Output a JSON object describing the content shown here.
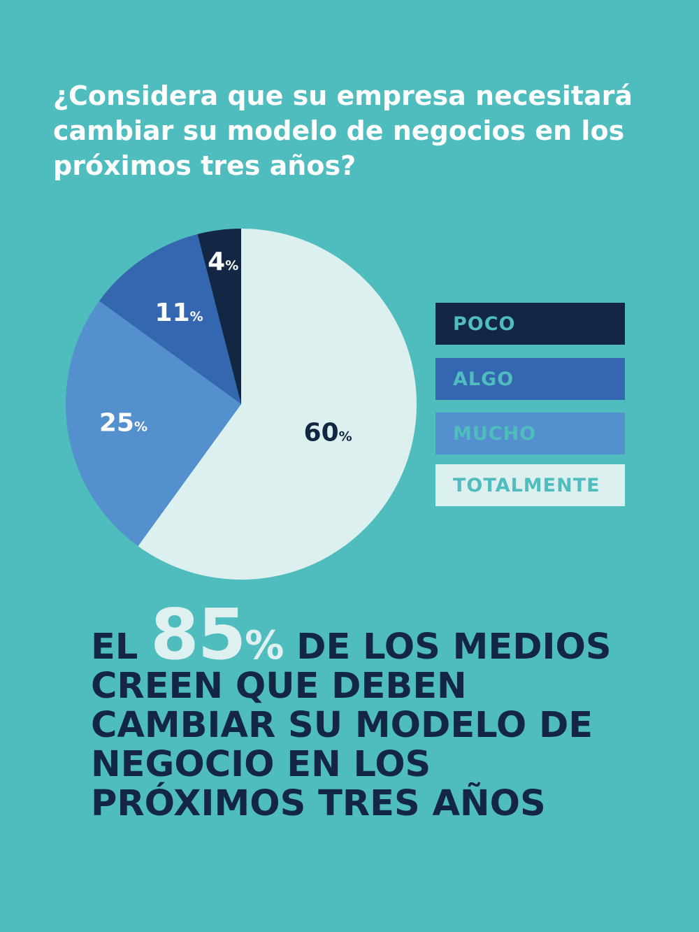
{
  "question": {
    "lines": [
      "¿Considera que su empresa necesitará",
      "cambiar su modelo de negocios en los",
      "próximos tres años?"
    ]
  },
  "chart_data": {
    "type": "pie",
    "title": "¿Considera que su empresa necesitará cambiar su modelo de negocios en los próximos tres años?",
    "unit_symbol": "%",
    "slices": [
      {
        "label": "TOTALMENTE",
        "value": 60,
        "color": "#dcf0ef",
        "label_color": "#132643"
      },
      {
        "label": "MUCHO",
        "value": 25,
        "color": "#5590ce",
        "label_color": "#ffffff"
      },
      {
        "label": "ALGO",
        "value": 11,
        "color": "#3567b1",
        "label_color": "#ffffff"
      },
      {
        "label": "POCO",
        "value": 4,
        "color": "#132643",
        "label_color": "#ffffff"
      }
    ],
    "legend": [
      {
        "label": "POCO",
        "color": "#132643",
        "text_color": "#4fbcbd"
      },
      {
        "label": "ALGO",
        "color": "#3567b1",
        "text_color": "#4fbcbd"
      },
      {
        "label": "MUCHO",
        "color": "#5590ce",
        "text_color": "#4fbcbd"
      },
      {
        "label": "TOTALMENTE",
        "color": "#dcf0ef",
        "text_color": "#4fbcbd"
      }
    ],
    "legend_position": "right"
  },
  "headline": {
    "prefix": "EL",
    "big_number": "85",
    "big_unit": "%",
    "line1_rest": "DE LOS MEDIOS",
    "line2": "CREEN QUE DEBEN",
    "line3": "CAMBIAR SU MODELO DE",
    "line4": "NEGOCIO EN LOS",
    "line5": "PRÓXIMOS TRES AÑOS"
  },
  "colors": {
    "background": "#4fbcbd",
    "dark_navy": "#132643",
    "highlight": "#def0ef"
  }
}
